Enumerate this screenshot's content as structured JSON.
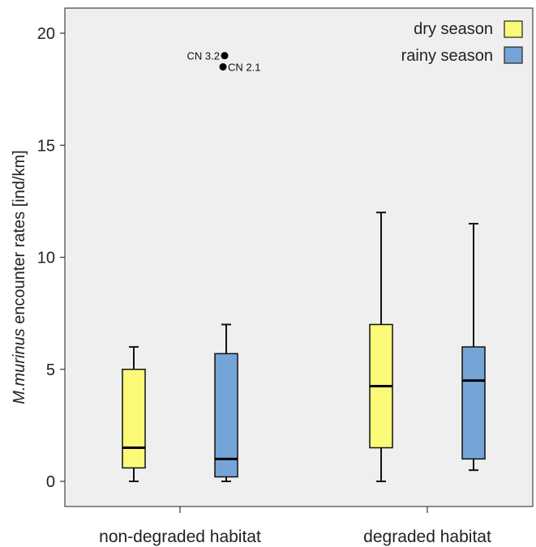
{
  "chart_data": {
    "type": "boxplot",
    "ylabel_italic": "M.murinus",
    "ylabel_rest": " encounter rates [ind/km]",
    "ylim": [
      -1,
      21
    ],
    "yticks": [
      0,
      5,
      10,
      15,
      20
    ],
    "categories": [
      "non-degraded habitat",
      "degraded habitat"
    ],
    "legend_position": "top-right",
    "series": [
      {
        "name": "dry season",
        "color": "#fafa78",
        "boxes": [
          {
            "min": 0,
            "q1": 0.6,
            "median": 1.5,
            "q3": 5,
            "max": 6
          },
          {
            "min": 0,
            "q1": 1.5,
            "median": 4.25,
            "q3": 7,
            "max": 12
          }
        ]
      },
      {
        "name": "rainy season",
        "color": "#74a5d6",
        "boxes": [
          {
            "min": 0,
            "q1": 0.2,
            "median": 1.0,
            "q3": 5.7,
            "max": 7
          },
          {
            "min": 0.5,
            "q1": 1.0,
            "median": 4.5,
            "q3": 6,
            "max": 11.5
          }
        ]
      }
    ],
    "outliers": [
      {
        "category": "non-degraded habitat",
        "series": "dry season",
        "value": 19.0,
        "label": "CN 3.2"
      },
      {
        "category": "non-degraded habitat",
        "series": "dry season",
        "value": 18.5,
        "label": "CN 2.1"
      }
    ]
  }
}
